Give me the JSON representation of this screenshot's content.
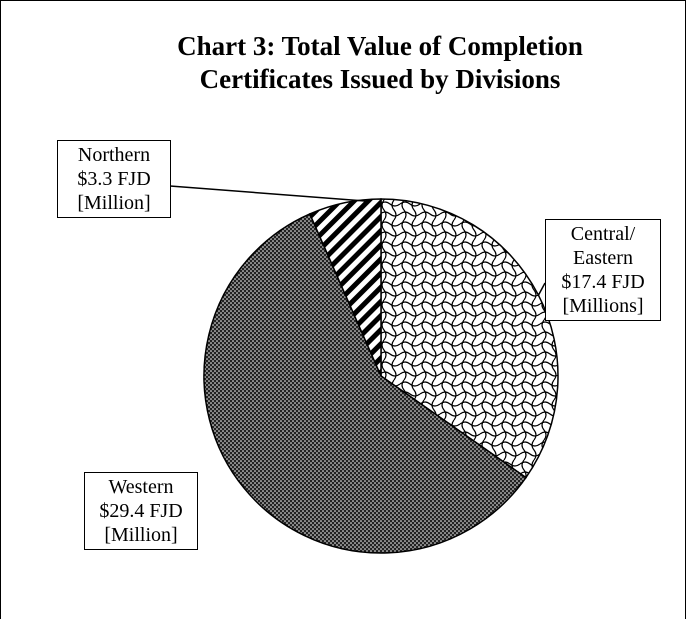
{
  "chart_data": {
    "type": "pie",
    "title": "Chart 3: Total Value of Completion Certificates Issued by Divisions",
    "categories": [
      "Central/ Eastern",
      "Western",
      "Northern"
    ],
    "values": [
      17.4,
      29.4,
      3.3
    ],
    "value_labels": [
      "$17.4 FJD [Millions]",
      "$29.4 FJD [Million]",
      "$3.3 FJD [Million]"
    ]
  }
}
